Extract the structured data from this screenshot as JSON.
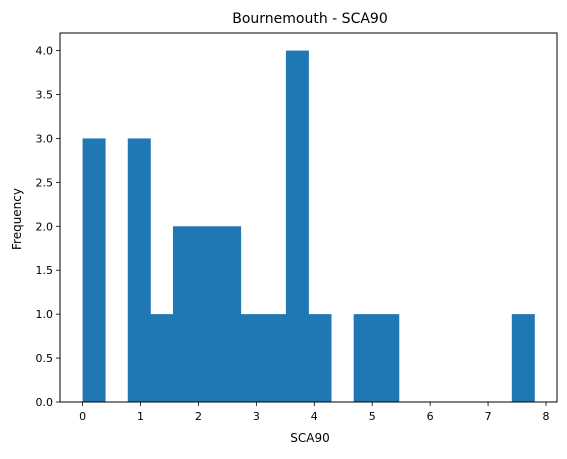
{
  "chart_data": {
    "type": "bar",
    "title": "Bournemouth - SCA90",
    "xlabel": "SCA90",
    "ylabel": "Frequency",
    "bins": [
      {
        "x0": 0.0,
        "x1": 0.39,
        "value": 3
      },
      {
        "x0": 0.39,
        "x1": 0.78,
        "value": 0
      },
      {
        "x0": 0.78,
        "x1": 1.17,
        "value": 3
      },
      {
        "x0": 1.17,
        "x1": 1.56,
        "value": 1
      },
      {
        "x0": 1.56,
        "x1": 1.95,
        "value": 2
      },
      {
        "x0": 1.95,
        "x1": 2.34,
        "value": 2
      },
      {
        "x0": 2.34,
        "x1": 2.73,
        "value": 2
      },
      {
        "x0": 2.73,
        "x1": 3.12,
        "value": 1
      },
      {
        "x0": 3.12,
        "x1": 3.51,
        "value": 1
      },
      {
        "x0": 3.51,
        "x1": 3.9,
        "value": 4
      },
      {
        "x0": 3.9,
        "x1": 4.29,
        "value": 1
      },
      {
        "x0": 4.29,
        "x1": 4.68,
        "value": 0
      },
      {
        "x0": 4.68,
        "x1": 5.07,
        "value": 1
      },
      {
        "x0": 5.07,
        "x1": 5.46,
        "value": 1
      },
      {
        "x0": 5.46,
        "x1": 5.85,
        "value": 0
      },
      {
        "x0": 5.85,
        "x1": 6.24,
        "value": 0
      },
      {
        "x0": 6.24,
        "x1": 6.63,
        "value": 0
      },
      {
        "x0": 6.63,
        "x1": 7.02,
        "value": 0
      },
      {
        "x0": 7.02,
        "x1": 7.41,
        "value": 0
      },
      {
        "x0": 7.41,
        "x1": 7.8,
        "value": 1
      }
    ],
    "xlim": [
      -0.39,
      8.19
    ],
    "ylim": [
      0,
      4.2
    ],
    "xticks": [
      {
        "value": 0,
        "label": "0"
      },
      {
        "value": 1,
        "label": "1"
      },
      {
        "value": 2,
        "label": "2"
      },
      {
        "value": 3,
        "label": "3"
      },
      {
        "value": 4,
        "label": "4"
      },
      {
        "value": 5,
        "label": "5"
      },
      {
        "value": 6,
        "label": "6"
      },
      {
        "value": 7,
        "label": "7"
      },
      {
        "value": 8,
        "label": "8"
      }
    ],
    "yticks": [
      {
        "value": 0.0,
        "label": "0.0"
      },
      {
        "value": 0.5,
        "label": "0.5"
      },
      {
        "value": 1.0,
        "label": "1.0"
      },
      {
        "value": 1.5,
        "label": "1.5"
      },
      {
        "value": 2.0,
        "label": "2.0"
      },
      {
        "value": 2.5,
        "label": "2.5"
      },
      {
        "value": 3.0,
        "label": "3.0"
      },
      {
        "value": 3.5,
        "label": "3.5"
      },
      {
        "value": 4.0,
        "label": "4.0"
      }
    ],
    "bar_color": "#1f77b4",
    "grid": false,
    "legend": "none"
  }
}
